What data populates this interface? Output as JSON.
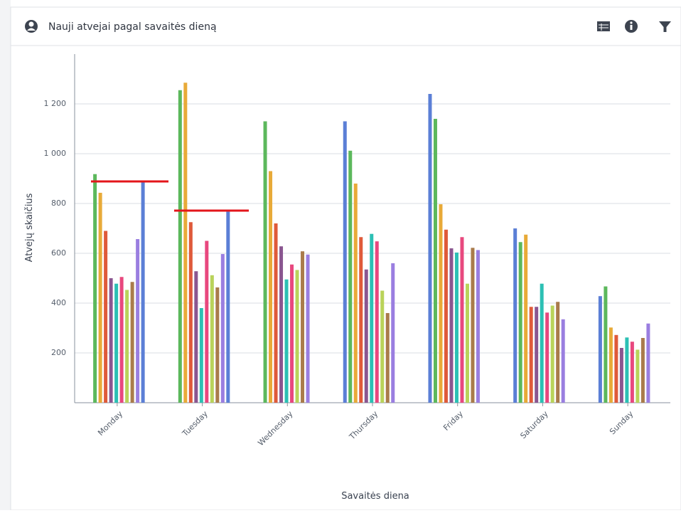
{
  "chart_data": {
    "type": "bar",
    "title": "Nauji atvejai pagal savaitės dieną",
    "x_label": "Savaitės diena",
    "y_label": "Atvejų skaičius",
    "categories": [
      "Monday",
      "Tuesday",
      "Wednesday",
      "Thursday",
      "Friday",
      "Saturday",
      "Sunday"
    ],
    "series": [
      {
        "color": "#5b7fd6",
        "values": [
          null,
          null,
          null,
          1130,
          1240,
          700,
          428
        ]
      },
      {
        "color": "#5cb85c",
        "values": [
          918,
          1255,
          1130,
          1012,
          1140,
          645,
          467
        ]
      },
      {
        "color": "#e8aa38",
        "values": [
          843,
          1285,
          930,
          880,
          797,
          675,
          302
        ]
      },
      {
        "color": "#df5a3a",
        "values": [
          690,
          725,
          720,
          665,
          695,
          385,
          272
        ]
      },
      {
        "color": "#8a5690",
        "values": [
          500,
          528,
          628,
          535,
          620,
          385,
          220
        ]
      },
      {
        "color": "#2cc0b4",
        "values": [
          478,
          380,
          495,
          678,
          603,
          478,
          262
        ]
      },
      {
        "color": "#e8487e",
        "values": [
          505,
          650,
          555,
          648,
          665,
          362,
          245
        ]
      },
      {
        "color": "#b9d35a",
        "values": [
          453,
          512,
          533,
          450,
          478,
          390,
          213
        ]
      },
      {
        "color": "#a97b4b",
        "values": [
          485,
          463,
          608,
          360,
          622,
          405,
          260
        ]
      },
      {
        "color": "#9a7ee0",
        "values": [
          657,
          597,
          595,
          560,
          613,
          335,
          318
        ]
      },
      {
        "color": "#5b7fd6",
        "values": [
          888,
          767,
          null,
          null,
          null,
          null,
          null
        ]
      }
    ],
    "ylim": [
      0,
      1400
    ],
    "yticks": [
      200,
      400,
      600,
      800,
      {
        "value": 1000,
        "label": "1 000"
      },
      {
        "value": 1200,
        "label": "1 200"
      }
    ],
    "grid": true
  }
}
